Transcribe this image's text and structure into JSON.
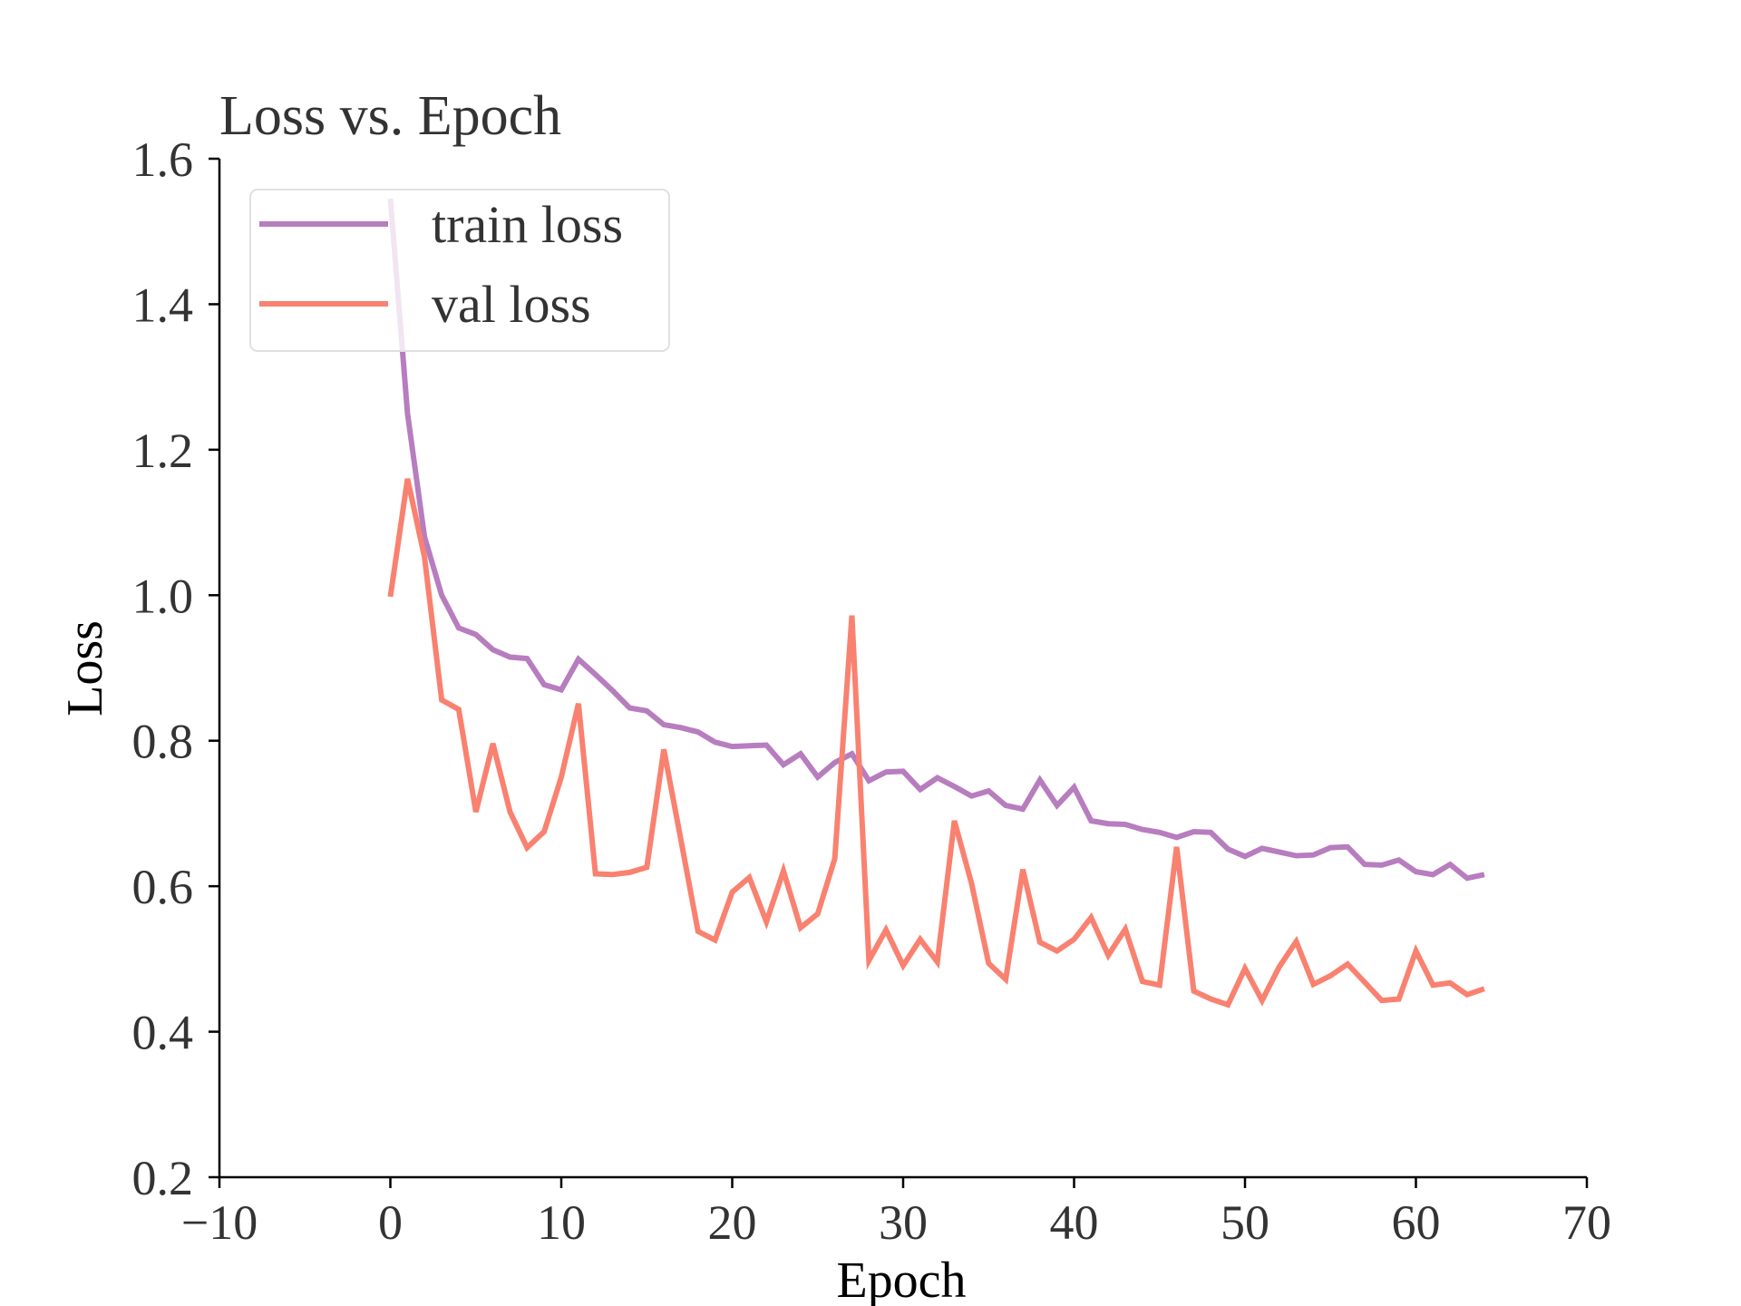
{
  "chart_data": {
    "type": "line",
    "title": "Loss vs. Epoch",
    "xlabel": "Epoch",
    "ylabel": "Loss",
    "xlim": [
      -10,
      70
    ],
    "ylim": [
      0.2,
      1.6
    ],
    "xticks": [
      -10,
      0,
      10,
      20,
      30,
      40,
      50,
      60,
      70
    ],
    "xtick_labels": [
      "−10",
      "0",
      "10",
      "20",
      "30",
      "40",
      "50",
      "60",
      "70"
    ],
    "yticks": [
      0.2,
      0.4,
      0.6,
      0.8,
      1.0,
      1.2,
      1.4,
      1.6
    ],
    "ytick_labels": [
      "0.2",
      "0.4",
      "0.6",
      "0.8",
      "1.0",
      "1.2",
      "1.4",
      "1.6"
    ],
    "grid": false,
    "legend_position": "upper-left",
    "series": [
      {
        "name": "train loss",
        "color": "#b77dbf",
        "x": [
          0,
          1,
          2,
          3,
          4,
          5,
          6,
          7,
          8,
          9,
          10,
          11,
          12,
          13,
          14,
          15,
          16,
          17,
          18,
          19,
          20,
          21,
          22,
          23,
          24,
          25,
          26,
          27,
          28,
          29,
          30,
          31,
          32,
          33,
          34,
          35,
          36,
          37,
          38,
          39,
          40,
          41,
          42,
          43,
          44,
          45,
          46,
          47,
          48,
          49,
          50,
          51,
          52,
          53,
          54,
          55,
          56,
          57,
          58,
          59,
          60,
          61,
          62,
          63,
          64
        ],
        "values": [
          1.545,
          1.25,
          1.08,
          1.0,
          0.955,
          0.946,
          0.925,
          0.915,
          0.913,
          0.877,
          0.87,
          0.912,
          0.891,
          0.869,
          0.845,
          0.841,
          0.822,
          0.818,
          0.812,
          0.798,
          0.792,
          0.793,
          0.794,
          0.767,
          0.782,
          0.75,
          0.77,
          0.782,
          0.745,
          0.757,
          0.758,
          0.733,
          0.749,
          0.737,
          0.724,
          0.731,
          0.711,
          0.706,
          0.746,
          0.711,
          0.736,
          0.69,
          0.686,
          0.685,
          0.678,
          0.674,
          0.667,
          0.675,
          0.674,
          0.651,
          0.641,
          0.652,
          0.647,
          0.642,
          0.643,
          0.653,
          0.654,
          0.63,
          0.629,
          0.636,
          0.62,
          0.616,
          0.63,
          0.611,
          0.616
        ]
      },
      {
        "name": "val loss",
        "color": "#f98170",
        "x": [
          0,
          1,
          2,
          3,
          4,
          5,
          6,
          7,
          8,
          9,
          10,
          11,
          12,
          13,
          14,
          15,
          16,
          17,
          18,
          19,
          20,
          21,
          22,
          23,
          24,
          25,
          26,
          27,
          28,
          29,
          30,
          31,
          32,
          33,
          34,
          35,
          36,
          37,
          38,
          39,
          40,
          41,
          42,
          43,
          44,
          45,
          46,
          47,
          48,
          49,
          50,
          51,
          52,
          53,
          54,
          55,
          56,
          57,
          58,
          59,
          60,
          61,
          62,
          63,
          64
        ],
        "values": [
          0.998,
          1.16,
          1.052,
          0.856,
          0.843,
          0.702,
          0.796,
          0.702,
          0.653,
          0.675,
          0.75,
          0.851,
          0.617,
          0.616,
          0.619,
          0.626,
          0.788,
          0.663,
          0.538,
          0.526,
          0.592,
          0.612,
          0.551,
          0.621,
          0.543,
          0.562,
          0.638,
          0.972,
          0.498,
          0.54,
          0.491,
          0.527,
          0.496,
          0.69,
          0.604,
          0.494,
          0.472,
          0.623,
          0.523,
          0.511,
          0.527,
          0.557,
          0.505,
          0.541,
          0.469,
          0.464,
          0.654,
          0.456,
          0.445,
          0.437,
          0.487,
          0.443,
          0.489,
          0.524,
          0.465,
          0.477,
          0.493,
          0.468,
          0.443,
          0.445,
          0.511,
          0.464,
          0.467,
          0.451,
          0.459
        ]
      }
    ]
  }
}
